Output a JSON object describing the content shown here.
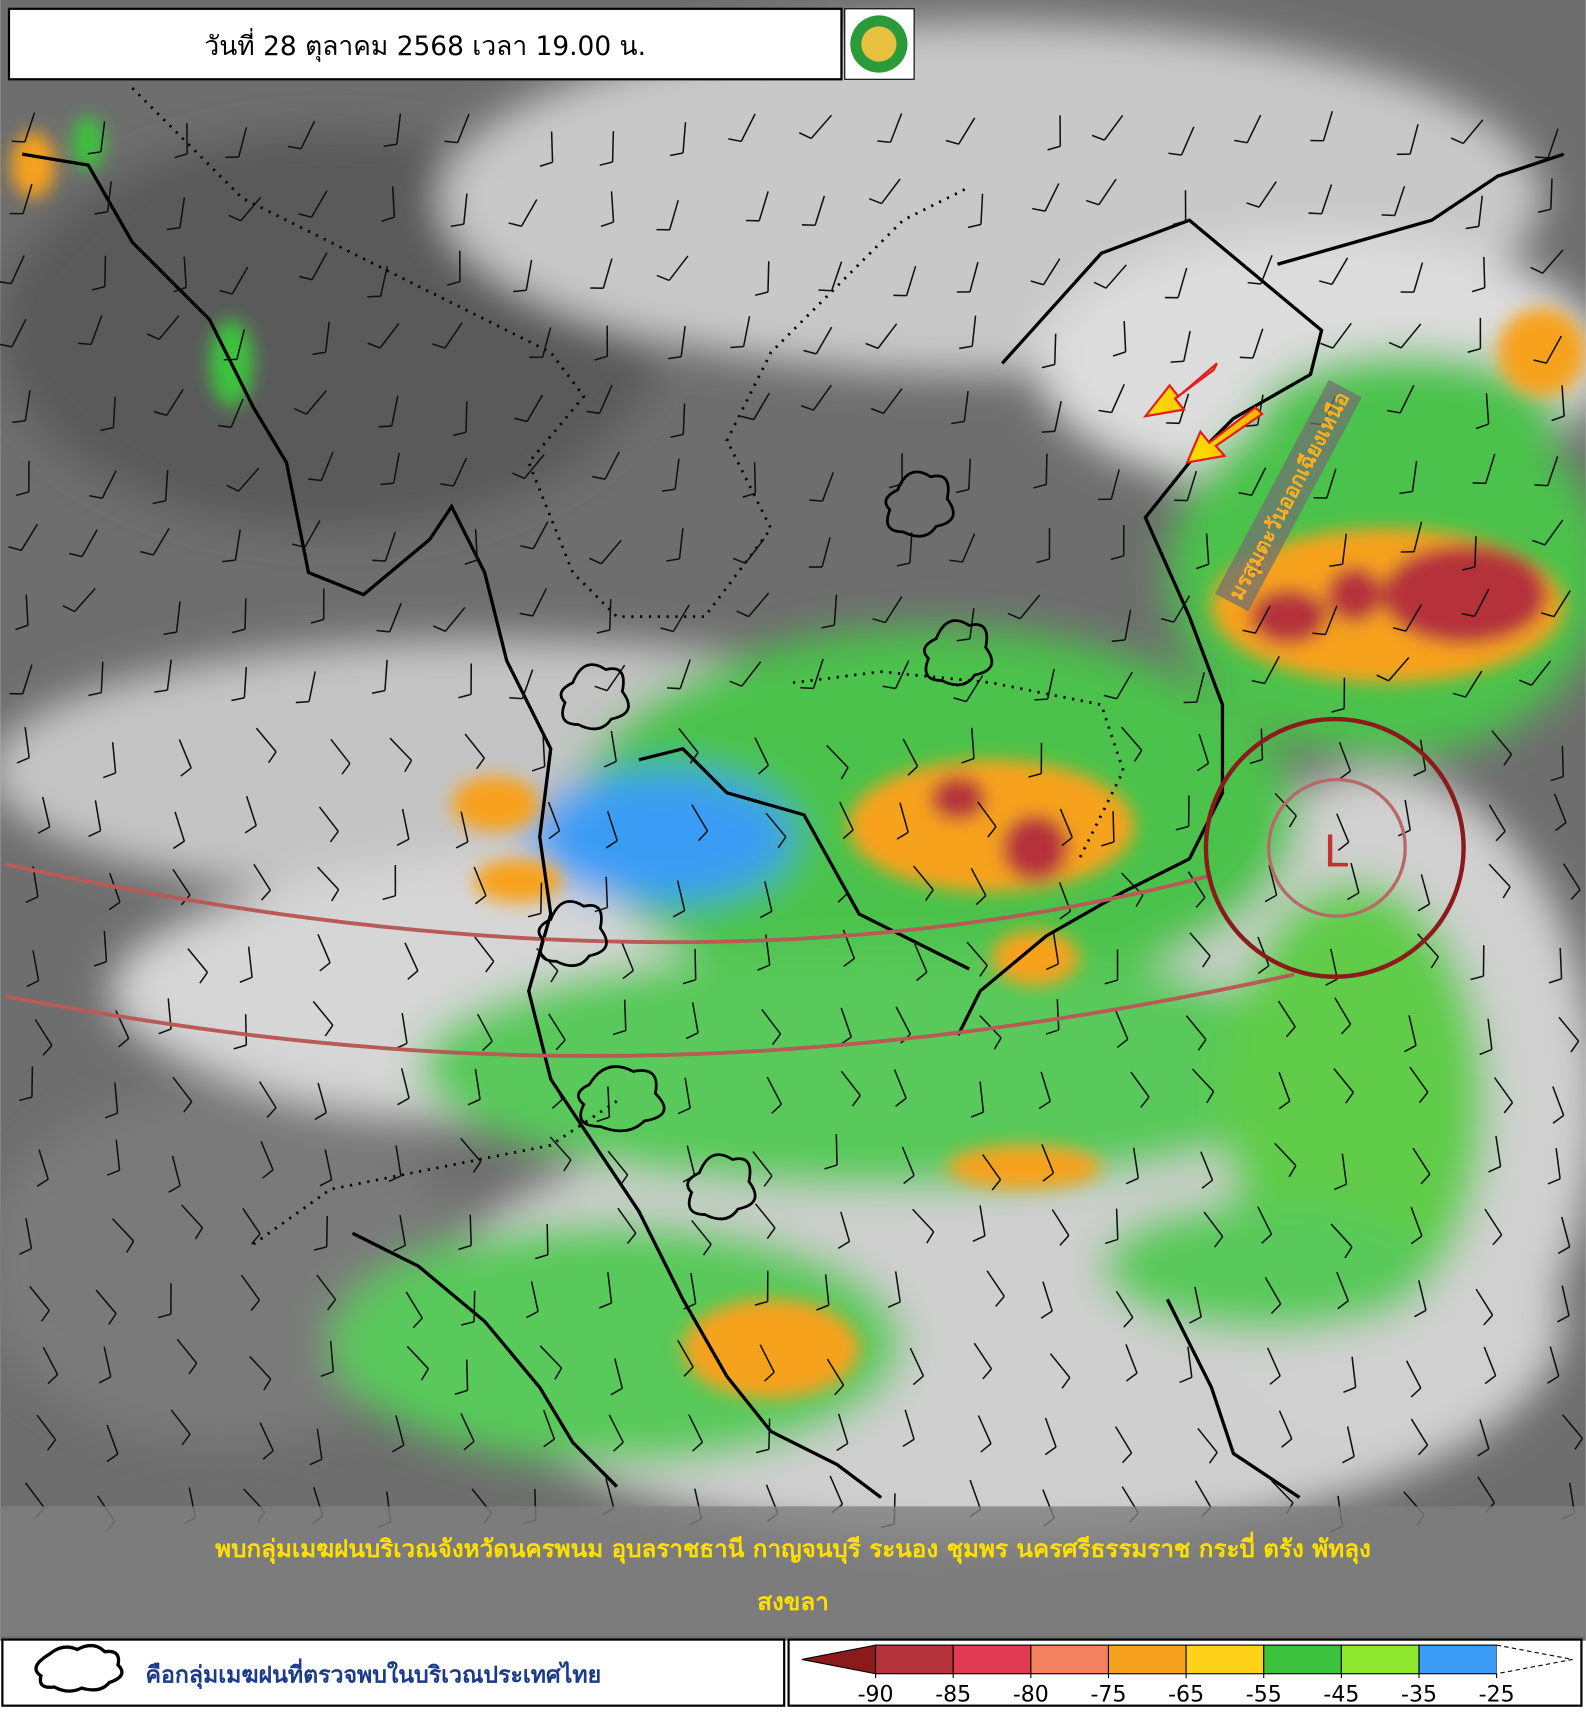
{
  "header": {
    "title": "วันที่ 28 ตุลาคม 2568 เวลา 19.00 น."
  },
  "map": {
    "monsoon_label": "มรสุมตะวันออกเฉียงเหนือ",
    "low_label": "L"
  },
  "banner": {
    "lines": [
      "พบกลุ่มเมฆฝนบริเวณจังหวัดนครพนม อุบลราชธานี กาญจนบุรี ระนอง ชุมพร นครศรีธรรมราช กระบี่ ตรัง พัทลุง",
      "สงขลา"
    ]
  },
  "legend": {
    "cloud_text": "คือกลุ่มเมฆฝนที่ตรวจพบในบริเวณประเทศไทย"
  },
  "colorbar": {
    "ticks": [
      -90,
      -85,
      -80,
      -75,
      -65,
      -55,
      -45,
      -35,
      -25
    ],
    "colors": [
      "#8b1a1a",
      "#b5333a",
      "#e23a55",
      "#f3805e",
      "#f7a21e",
      "#ffd21a",
      "#3cc23c",
      "#8fe82e",
      "#3a9cf5",
      "#ffffff"
    ]
  }
}
